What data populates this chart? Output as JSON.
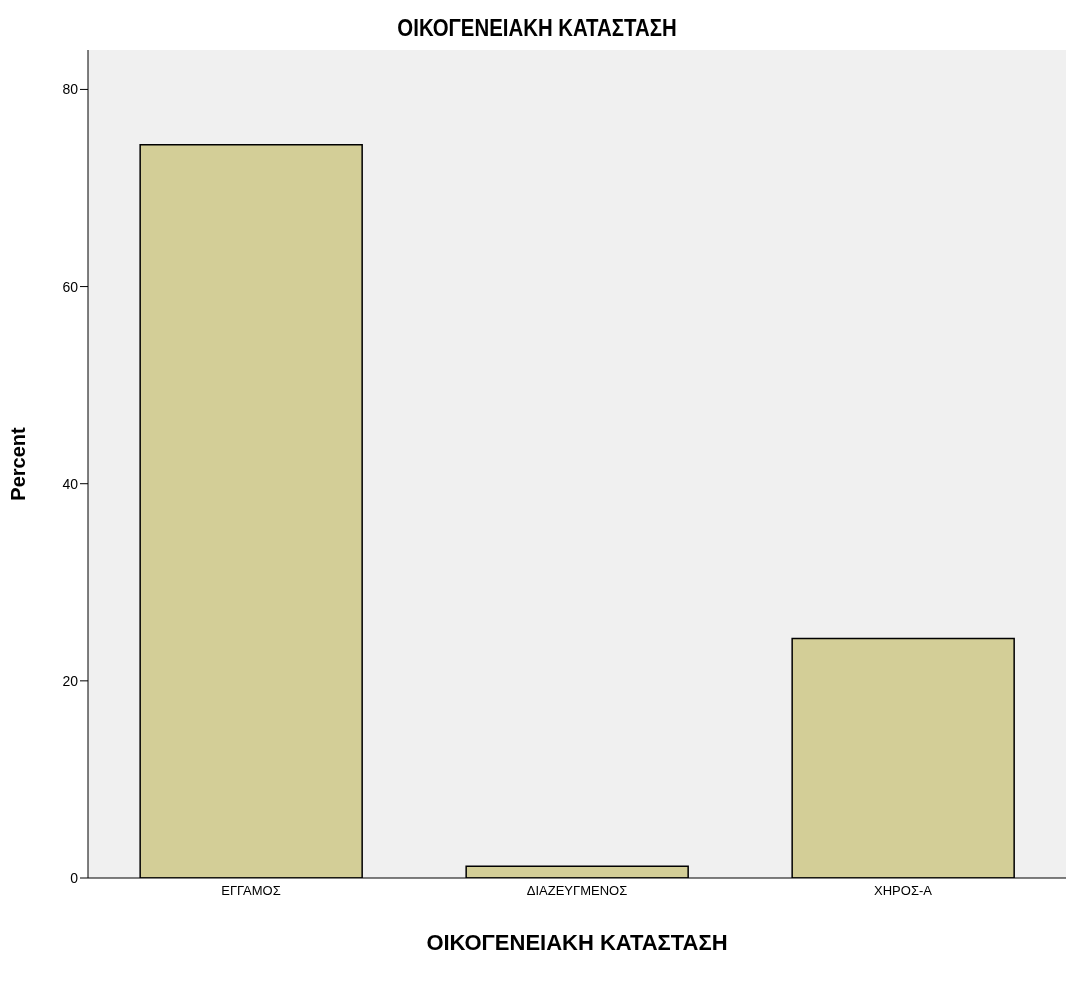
{
  "chart_data": {
    "type": "bar",
    "title": "ΟΙΚΟΓΕΝΕΙΑΚΗ ΚΑΤΑΣΤΑΣΗ",
    "xlabel": "ΟΙΚΟΓΕΝΕΙΑΚΗ ΚΑΤΑΣΤΑΣΗ",
    "ylabel": "Percent",
    "categories": [
      "ΕΓΓΑΜΟΣ",
      "ΔΙΑΖΕΥΓΜΕΝΟΣ",
      "ΧΗΡΟΣ-Α"
    ],
    "values": [
      74.4,
      1.2,
      24.3
    ],
    "color": "#d3ce97",
    "ylim": [
      0,
      84
    ],
    "yticks": [
      0,
      20,
      40,
      60,
      80
    ],
    "grid": false,
    "legend": false
  }
}
